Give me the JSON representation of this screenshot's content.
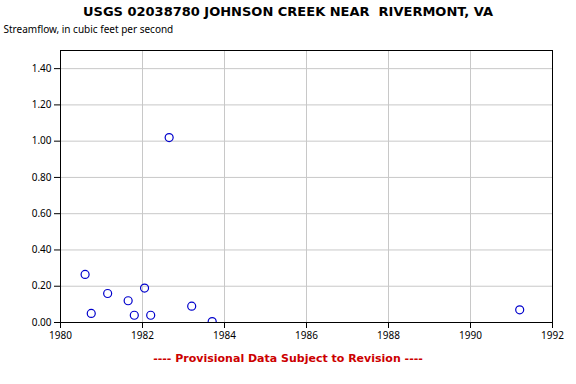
{
  "chart_data": {
    "type": "scatter",
    "title": "USGS 02038780 JOHNSON CREEK NEAR  RIVERMONT, VA",
    "ylabel": "Streamflow, in cubic feet per second",
    "x": [
      1980.6,
      1980.75,
      1981.15,
      1981.65,
      1981.8,
      1982.05,
      1982.2,
      1982.65,
      1983.2,
      1983.7,
      1991.2
    ],
    "values": [
      0.265,
      0.05,
      0.16,
      0.12,
      0.04,
      0.19,
      0.04,
      1.02,
      0.09,
      0.005,
      0.07
    ],
    "color": "#0000cc",
    "marker": "circle",
    "xlim": [
      1980,
      1992
    ],
    "xticks": [
      1980,
      1982,
      1984,
      1986,
      1988,
      1990,
      1992
    ],
    "ylim": [
      0.0,
      1.5
    ],
    "yticks": [
      {
        "value": 0.0,
        "label": "0.00"
      },
      {
        "value": 0.2,
        "label": "0.20"
      },
      {
        "value": 0.4,
        "label": "0.40"
      },
      {
        "value": 0.6,
        "label": "0.60"
      },
      {
        "value": 0.8,
        "label": "0.80"
      },
      {
        "value": 1.0,
        "label": "1.00"
      },
      {
        "value": 1.2,
        "label": "1.20"
      },
      {
        "value": 1.4,
        "label": "1.40"
      }
    ],
    "grid": true,
    "annotations": [
      {
        "text": "---- Provisional Data Subject to Revision ----",
        "color": "#cc0000"
      }
    ]
  }
}
